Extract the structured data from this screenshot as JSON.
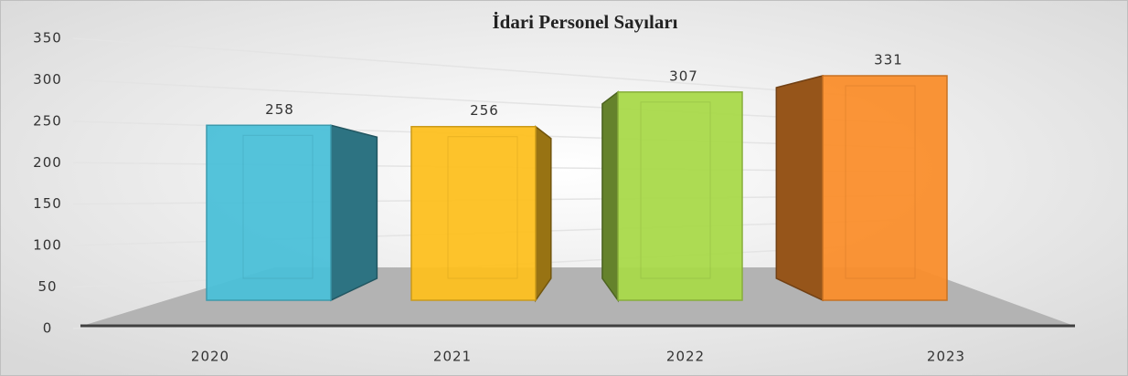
{
  "chart_data": {
    "type": "bar3d",
    "title": "İdari Personel Sayıları",
    "categories": [
      "2020",
      "2021",
      "2022",
      "2023"
    ],
    "values": [
      258,
      256,
      307,
      331
    ],
    "colors": [
      "#4bc0d8",
      "#fdc020",
      "#a9d94a",
      "#fa8e2c"
    ],
    "ylim": [
      0,
      350
    ],
    "yticks": [
      0,
      50,
      100,
      150,
      200,
      250,
      300,
      350
    ],
    "grid": true
  }
}
